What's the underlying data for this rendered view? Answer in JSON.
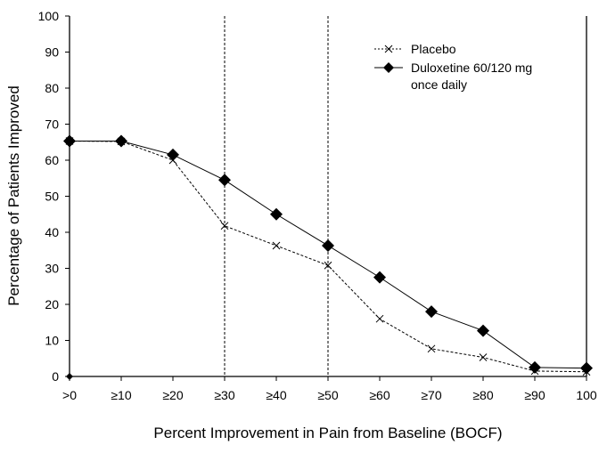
{
  "chart_data": {
    "type": "line",
    "title": "",
    "xlabel": "Percent Improvement in Pain from Baseline (BOCF)",
    "ylabel": "Percentage of Patients Improved",
    "categories": [
      ">0",
      "≥10",
      "≥20",
      "≥30",
      "≥40",
      "≥50",
      "≥60",
      "≥70",
      "≥80",
      "≥90",
      "100"
    ],
    "ylim": [
      0,
      100
    ],
    "yticks": [
      0,
      10,
      20,
      30,
      40,
      50,
      60,
      70,
      80,
      90,
      100
    ],
    "grid": false,
    "reference_lines_at": [
      "≥30",
      "≥50"
    ],
    "legend_position": "top-right",
    "series": [
      {
        "name": "Placebo",
        "marker": "x",
        "line": "dashed",
        "color": "#000000",
        "values": [
          65.3,
          65.2,
          60.0,
          41.8,
          36.3,
          30.8,
          16.0,
          7.7,
          5.3,
          1.5,
          1.3
        ]
      },
      {
        "name": "Duloxetine 60/120 mg once daily",
        "legend_lines": [
          "Duloxetine 60/120 mg",
          "once daily"
        ],
        "marker": "diamond",
        "line": "solid",
        "color": "#000000",
        "values": [
          65.3,
          65.3,
          61.5,
          54.5,
          45.0,
          36.3,
          27.5,
          18.0,
          12.7,
          2.5,
          2.3
        ]
      }
    ]
  }
}
